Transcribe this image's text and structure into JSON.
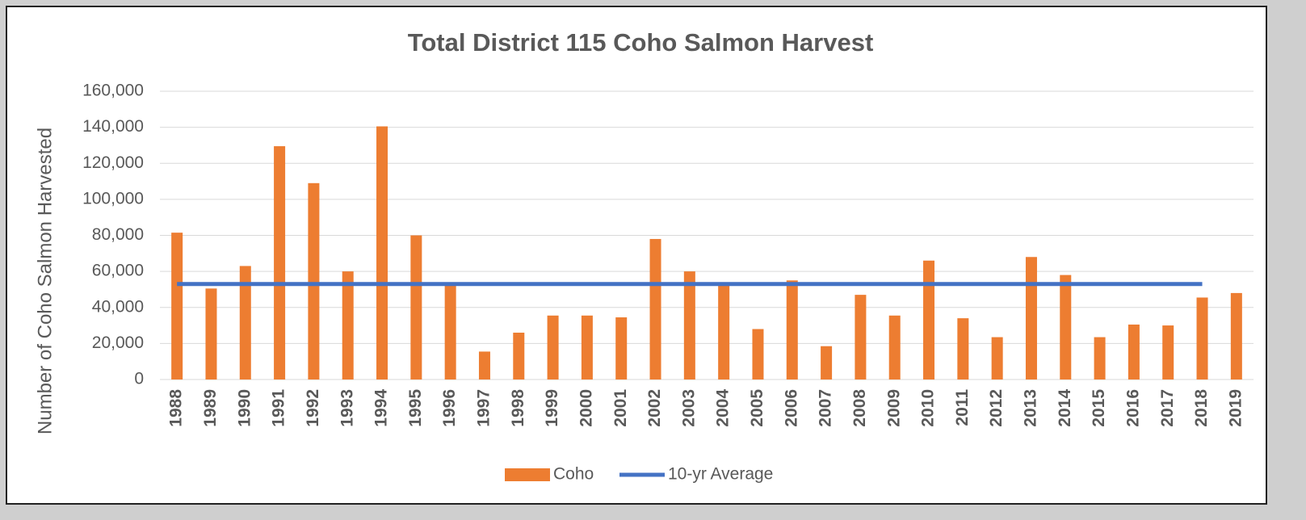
{
  "chart_data": {
    "type": "bar",
    "title": "Total District 115 Coho Salmon Harvest",
    "y_label": "Number of Coho Salmon Harvested",
    "categories": [
      "1988",
      "1989",
      "1990",
      "1991",
      "1992",
      "1993",
      "1994",
      "1995",
      "1996",
      "1997",
      "1998",
      "1999",
      "2000",
      "2001",
      "2002",
      "2003",
      "2004",
      "2005",
      "2006",
      "2007",
      "2008",
      "2009",
      "2010",
      "2011",
      "2012",
      "2013",
      "2014",
      "2015",
      "2016",
      "2017",
      "2018",
      "2019"
    ],
    "series": [
      {
        "name": "Coho",
        "type": "bar",
        "color": "#ed7d31",
        "values": [
          81500,
          50500,
          63000,
          129500,
          109000,
          60000,
          140500,
          80000,
          52500,
          15500,
          26000,
          35500,
          35500,
          34500,
          78000,
          60000,
          52500,
          28000,
          55000,
          18500,
          47000,
          35500,
          66000,
          34000,
          23500,
          68000,
          58000,
          23500,
          30500,
          30000,
          45500,
          48000
        ]
      },
      {
        "name": "10-yr Average",
        "type": "line",
        "color": "#4472c4",
        "values": [
          53000,
          53000,
          53000,
          53000,
          53000,
          53000,
          53000,
          53000,
          53000,
          53000,
          53000,
          53000,
          53000,
          53000,
          53000,
          53000,
          53000,
          53000,
          53000,
          53000,
          53000,
          53000,
          53000,
          53000,
          53000,
          53000,
          53000,
          53000,
          53000,
          53000,
          53000,
          null
        ]
      }
    ],
    "ylim": [
      0,
      160000
    ],
    "yticks": [
      0,
      {
        "value": 20000,
        "label": "20,000"
      },
      {
        "value": 40000,
        "label": "40,000"
      },
      {
        "value": 60000,
        "label": "60,000"
      },
      {
        "value": 80000,
        "label": "80,000"
      },
      {
        "value": 100000,
        "label": "100,000"
      },
      {
        "value": 120000,
        "label": "120,000"
      },
      {
        "value": 140000,
        "label": "140,000"
      },
      {
        "value": 160000,
        "label": "160,000"
      }
    ],
    "grid": true,
    "legend": "bottom"
  }
}
